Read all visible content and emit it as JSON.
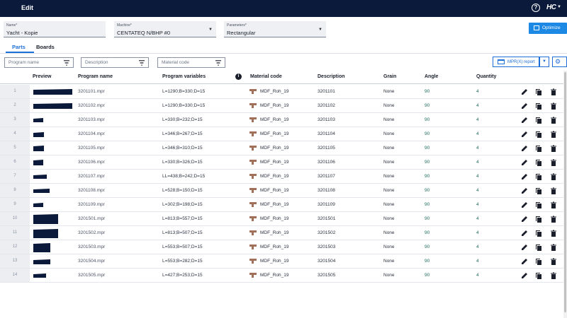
{
  "header": {
    "title": "Edit",
    "help_icon": "help-circle-icon",
    "logo_text": "HC"
  },
  "fields": {
    "name": {
      "label": "Name*",
      "value": "Yacht - Kopie"
    },
    "machine": {
      "label": "Machine*",
      "value": "CENTATEQ N/BHP #0"
    },
    "parameters": {
      "label": "Parameters*",
      "value": "Rectangular"
    }
  },
  "optimize_label": "Optimize",
  "tabs": [
    {
      "label": "Parts",
      "active": true
    },
    {
      "label": "Boards",
      "active": false
    }
  ],
  "filters": {
    "program_name": "Program name",
    "description": "Description",
    "material_code": "Material code"
  },
  "report_label": "MPR(X) report",
  "columns": {
    "preview": "Preview",
    "program_name": "Program name",
    "program_variables": "Program variables",
    "material_code": "Material code",
    "description": "Description",
    "grain": "Grain",
    "angle": "Angle",
    "quantity": "Quantity"
  },
  "colors": {
    "topbar": "#0b1a3a",
    "accent": "#1e6fd9",
    "preview_fill": "#0b1a3a",
    "material_swatch": "#a0705a"
  },
  "rows": [
    {
      "index": "1",
      "program": "3201101.mpr",
      "vars": "L=1290;B=330;D=15",
      "material": "MDF_Roh_19",
      "description": "3201101",
      "grain": "None",
      "angle": "90",
      "qty": "4",
      "w": 1290,
      "b": 330
    },
    {
      "index": "2",
      "program": "3201102.mpr",
      "vars": "L=1290;B=330;D=15",
      "material": "MDF_Roh_19",
      "description": "3201102",
      "grain": "None",
      "angle": "90",
      "qty": "4",
      "w": 1290,
      "b": 330
    },
    {
      "index": "3",
      "program": "3201103.mpr",
      "vars": "L=330;B=232;D=15",
      "material": "MDF_Roh_19",
      "description": "3201103",
      "grain": "None",
      "angle": "90",
      "qty": "4",
      "w": 330,
      "b": 232
    },
    {
      "index": "4",
      "program": "3201104.mpr",
      "vars": "L=346;B=267;D=15",
      "material": "MDF_Roh_19",
      "description": "3201104",
      "grain": "None",
      "angle": "90",
      "qty": "4",
      "w": 346,
      "b": 267
    },
    {
      "index": "5",
      "program": "3201105.mpr",
      "vars": "L=346;B=310;D=15",
      "material": "MDF_Roh_19",
      "description": "3201105",
      "grain": "None",
      "angle": "90",
      "qty": "4",
      "w": 346,
      "b": 310
    },
    {
      "index": "6",
      "program": "3201106.mpr",
      "vars": "L=330;B=326;D=15",
      "material": "MDF_Roh_19",
      "description": "3201106",
      "grain": "None",
      "angle": "90",
      "qty": "4",
      "w": 330,
      "b": 326
    },
    {
      "index": "7",
      "program": "3201107.mpr",
      "vars": "LL=438;B=242;D=15",
      "material": "MDF_Roh_19",
      "description": "3201107",
      "grain": "None",
      "angle": "90",
      "qty": "4",
      "w": 438,
      "b": 242
    },
    {
      "index": "8",
      "program": "3201108.mpr",
      "vars": "L=528;B=150;D=15",
      "material": "MDF_Roh_19",
      "description": "3201108",
      "grain": "None",
      "angle": "90",
      "qty": "4",
      "w": 528,
      "b": 150
    },
    {
      "index": "9",
      "program": "3201109.mpr",
      "vars": "L=302;B=198;D=15",
      "material": "MDF_Roh_19",
      "description": "3201109",
      "grain": "None",
      "angle": "90",
      "qty": "4",
      "w": 302,
      "b": 198
    },
    {
      "index": "10",
      "program": "3201501.mpr",
      "vars": "L=813;B=557;D=15",
      "material": "MDF_Roh_19",
      "description": "3201501",
      "grain": "None",
      "angle": "90",
      "qty": "4",
      "w": 813,
      "b": 557
    },
    {
      "index": "11",
      "program": "3201502.mpr",
      "vars": "L=813;B=507;D=15",
      "material": "MDF_Roh_19",
      "description": "3201502",
      "grain": "None",
      "angle": "90",
      "qty": "4",
      "w": 813,
      "b": 507
    },
    {
      "index": "12",
      "program": "3201503.mpr",
      "vars": "L=553;B=507;D=15",
      "material": "MDF_Roh_19",
      "description": "3201503",
      "grain": "None",
      "angle": "90",
      "qty": "4",
      "w": 553,
      "b": 507
    },
    {
      "index": "13",
      "program": "3201504.mpr",
      "vars": "L=553;B=282;D=15",
      "material": "MDF_Roh_19",
      "description": "3201504",
      "grain": "None",
      "angle": "90",
      "qty": "4",
      "w": 553,
      "b": 282
    },
    {
      "index": "14",
      "program": "3201505.mpr",
      "vars": "L=427;B=253;D=15",
      "material": "MDF_Roh_19",
      "description": "3201505",
      "grain": "None",
      "angle": "90",
      "qty": "4",
      "w": 427,
      "b": 253
    }
  ]
}
